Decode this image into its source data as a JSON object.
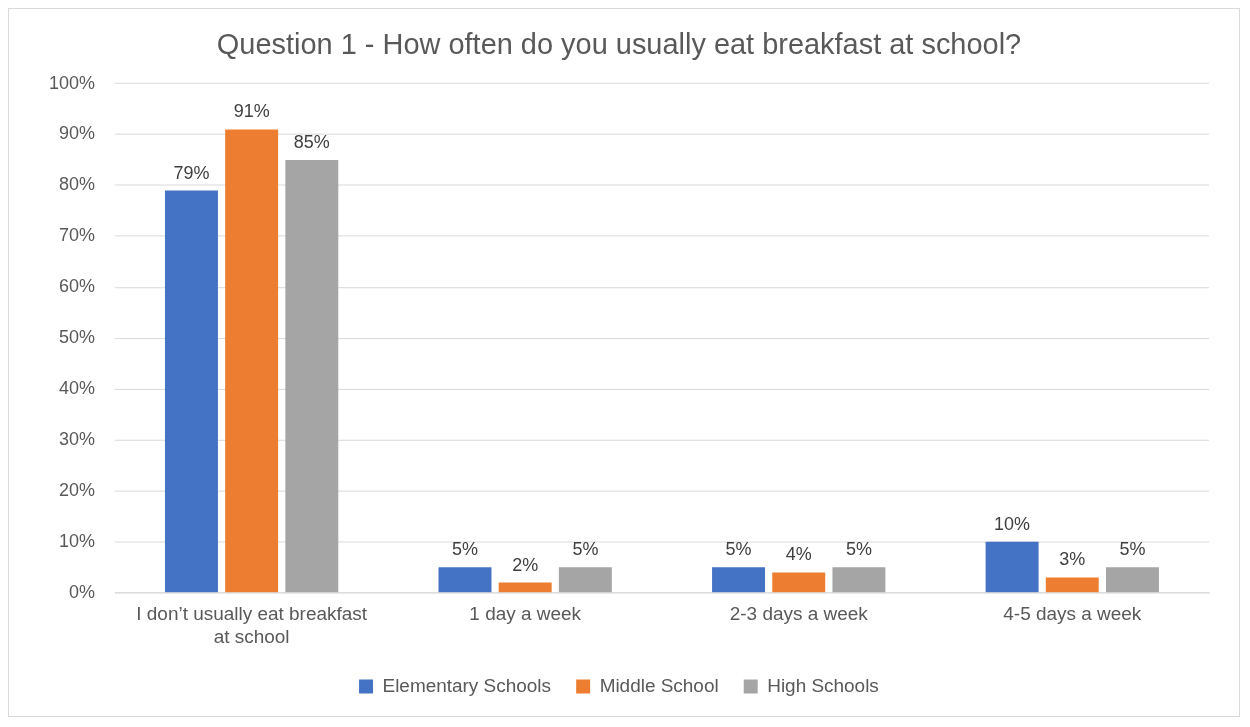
{
  "chart_data": {
    "type": "bar",
    "title": "Question 1 - How often do you usually eat breakfast at school?",
    "categories": [
      "I don’t usually eat breakfast at school",
      "1 day a week",
      "2-3 days a week",
      "4-5 days a week"
    ],
    "series": [
      {
        "name": "Elementary Schools",
        "color": "#4472c4",
        "values": [
          79,
          5,
          5,
          10
        ],
        "value_labels": [
          "79%",
          "5%",
          "5%",
          "10%"
        ]
      },
      {
        "name": "Middle School",
        "color": "#ed7d31",
        "values": [
          91,
          2,
          4,
          3
        ],
        "value_labels": [
          "91%",
          "2%",
          "4%",
          "3%"
        ]
      },
      {
        "name": "High Schools",
        "color": "#a5a5a5",
        "values": [
          85,
          5,
          5,
          5
        ],
        "value_labels": [
          "85%",
          "5%",
          "5%",
          "5%"
        ]
      }
    ],
    "ylim": [
      0,
      100
    ],
    "yticks": [
      {
        "value": 0,
        "label": "0%"
      },
      {
        "value": 10,
        "label": "10%"
      },
      {
        "value": 20,
        "label": "20%"
      },
      {
        "value": 30,
        "label": "30%"
      },
      {
        "value": 40,
        "label": "40%"
      },
      {
        "value": 50,
        "label": "50%"
      },
      {
        "value": 60,
        "label": "60%"
      },
      {
        "value": 70,
        "label": "70%"
      },
      {
        "value": 80,
        "label": "80%"
      },
      {
        "value": 90,
        "label": "90%"
      },
      {
        "value": 100,
        "label": "100%"
      }
    ],
    "grid": "y",
    "legend": "bottom"
  }
}
